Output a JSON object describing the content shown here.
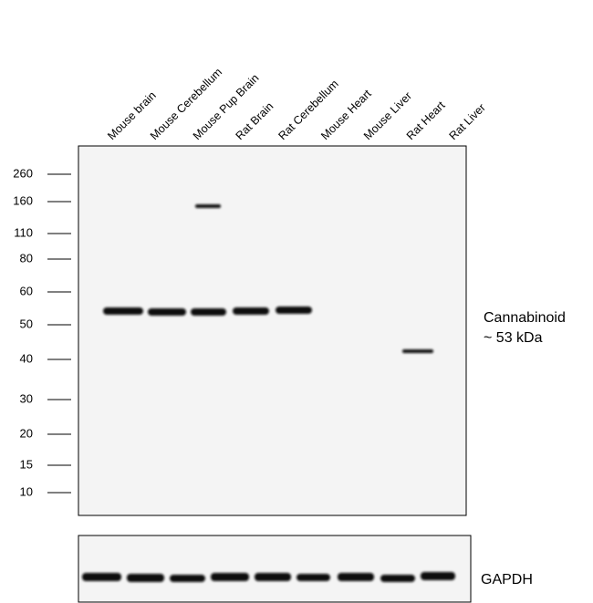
{
  "lanes": [
    "Mouse brain",
    "Mouse Cerebellum",
    "Mouse Pup Brain",
    "Rat Brain",
    "Rat Cerebellum",
    "Mouse Heart",
    "Mouse Liver",
    "Rat Heart",
    "Rat Liver"
  ],
  "markers": [
    "260",
    "160",
    "110",
    "80",
    "60",
    "50",
    "40",
    "30",
    "20",
    "15",
    "10"
  ],
  "annotations": {
    "target": "Cannabinoid",
    "size": "~ 53 kDa",
    "loading_control": "GAPDH"
  }
}
